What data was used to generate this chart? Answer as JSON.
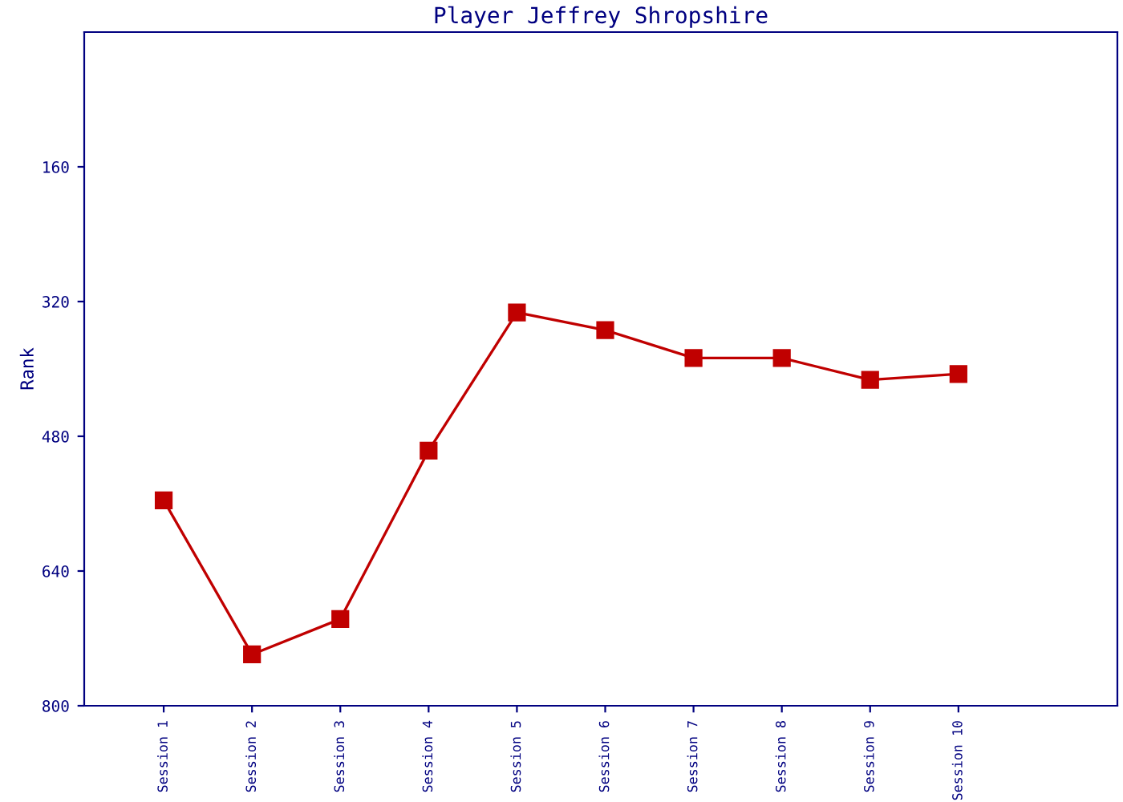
{
  "chart_data": {
    "type": "line",
    "title": "Player Jeffrey Shropshire",
    "ylabel": "Rank",
    "categories": [
      "Session 1",
      "Session 2",
      "Session 3",
      "Session 4",
      "Session 5",
      "Session 6",
      "Session 7",
      "Session 8",
      "Session 9",
      "Session 10"
    ],
    "series": [
      {
        "color": "#c00000",
        "values": [
          556,
          739,
          697,
          497,
          333,
          354,
          387,
          387,
          413,
          406
        ]
      }
    ],
    "ylim": [
      800,
      0
    ],
    "yticks": [
      160,
      320,
      480,
      640,
      800
    ],
    "grid": false,
    "marker": "square",
    "line_style": "solid"
  }
}
